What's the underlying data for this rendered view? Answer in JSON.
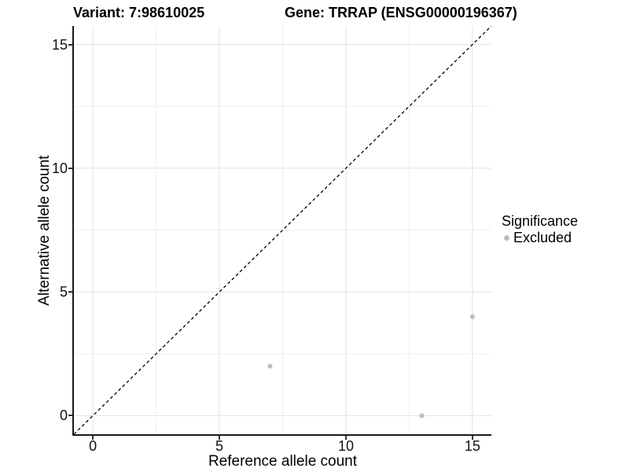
{
  "chart_data": {
    "type": "scatter",
    "title_left": "Variant: 7:98610025",
    "title_right": "Gene: TRRAP (ENSG00000196367)",
    "xlabel": "Reference allele count",
    "ylabel": "Alternative allele count",
    "xlim": [
      -0.75,
      15.75
    ],
    "ylim": [
      -0.75,
      15.75
    ],
    "x_ticks": [
      0,
      5,
      10,
      15
    ],
    "y_ticks": [
      0,
      5,
      10,
      15
    ],
    "x_minor_ticks": [
      2.5,
      7.5,
      12.5
    ],
    "y_minor_ticks": [
      2.5,
      7.5,
      12.5
    ],
    "grid": "major and minor gridlines, white background",
    "legend": {
      "title": "Significance",
      "position": "right",
      "items": [
        {
          "label": "Excluded",
          "color": "#bdbdbd"
        }
      ]
    },
    "series": [
      {
        "name": "Excluded",
        "marker_color": "#bdbdbd",
        "points": [
          {
            "x": 7,
            "y": 2
          },
          {
            "x": 13,
            "y": 0
          },
          {
            "x": 15,
            "y": 4
          }
        ]
      }
    ],
    "reference_line": {
      "kind": "identity y = x",
      "style": "dashed",
      "color": "#000000"
    }
  },
  "colors": {
    "point": "#bdbdbd",
    "grid_major": "#e3e3e3",
    "grid_minor": "#f0f0f0",
    "axis_line": "#1a1a1a",
    "dashed_line": "#000000",
    "tick_mark": "#333333"
  }
}
